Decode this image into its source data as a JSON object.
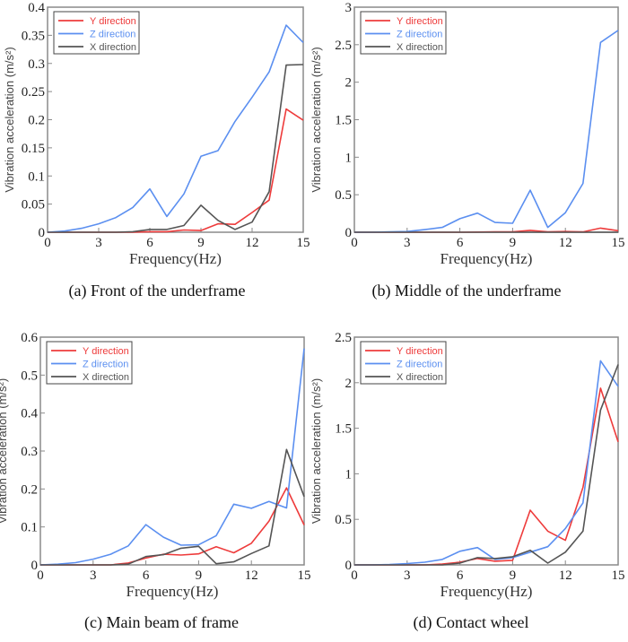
{
  "chart_data": [
    {
      "type": "line",
      "id": "a",
      "caption": "(a) Front of the underframe",
      "xlabel": "Frequency(Hz)",
      "ylabel": "Vibration acceleration (m/s²)",
      "xlim": [
        0,
        15
      ],
      "ylim": [
        0,
        0.4
      ],
      "xticks": [
        0,
        3,
        6,
        9,
        12,
        15
      ],
      "yticks": [
        0,
        0.05,
        0.1,
        0.15,
        0.2,
        0.25,
        0.3,
        0.35,
        0.4
      ],
      "ytick_labels": [
        "0",
        "0.05",
        "0.1",
        "0.15",
        "0.2",
        "0.25",
        "0.3",
        "0.35",
        "0.4"
      ],
      "grid": false,
      "legend_position": "top-left",
      "x": [
        0,
        1,
        2,
        3,
        4,
        5,
        6,
        7,
        8,
        9,
        10,
        11,
        12,
        13,
        14,
        15
      ],
      "series": [
        {
          "name": "Y direction",
          "color": "#ee3b3b",
          "values": [
            0,
            0,
            0,
            0,
            0,
            0,
            0.001,
            0.001,
            0.004,
            0.003,
            0.015,
            0.014,
            0.035,
            0.057,
            0.219,
            0.199
          ]
        },
        {
          "name": "Z direction",
          "color": "#5b8ff0",
          "values": [
            0,
            0.002,
            0.007,
            0.015,
            0.026,
            0.044,
            0.077,
            0.028,
            0.068,
            0.135,
            0.145,
            0.197,
            0.24,
            0.285,
            0.368,
            0.337
          ]
        },
        {
          "name": "X direction",
          "color": "#555555",
          "values": [
            0,
            0,
            0,
            0,
            0,
            0.001,
            0.005,
            0.005,
            0.012,
            0.048,
            0.021,
            0.005,
            0.018,
            0.072,
            0.297,
            0.298
          ]
        }
      ]
    },
    {
      "type": "line",
      "id": "b",
      "caption": "(b) Middle of the underframe",
      "xlabel": "Frequency(Hz)",
      "ylabel": "Vibration acceleration (m/s²)",
      "xlim": [
        0,
        15
      ],
      "ylim": [
        0,
        3
      ],
      "xticks": [
        0,
        3,
        6,
        9,
        12,
        15
      ],
      "yticks": [
        0,
        0.5,
        1,
        1.5,
        2,
        2.5,
        3
      ],
      "ytick_labels": [
        "0",
        "0.5",
        "1",
        "1.5",
        "2",
        "2.5",
        "3"
      ],
      "grid": false,
      "legend_position": "top-left",
      "x": [
        0,
        1,
        2,
        3,
        4,
        5,
        6,
        7,
        8,
        9,
        10,
        11,
        12,
        13,
        14,
        15
      ],
      "series": [
        {
          "name": "Y direction",
          "color": "#ee3b3b",
          "values": [
            0,
            0,
            0,
            0,
            0,
            0,
            0,
            0.002,
            0.005,
            0.005,
            0.025,
            0.005,
            0.01,
            0.005,
            0.055,
            0.02
          ]
        },
        {
          "name": "Z direction",
          "color": "#5b8ff0",
          "values": [
            0,
            0,
            0.005,
            0.01,
            0.035,
            0.065,
            0.18,
            0.255,
            0.13,
            0.12,
            0.56,
            0.065,
            0.26,
            0.65,
            2.53,
            2.69
          ]
        },
        {
          "name": "X direction",
          "color": "#555555",
          "values": [
            0,
            0,
            0,
            0,
            0,
            0,
            0,
            0,
            0,
            0,
            0,
            0,
            0,
            0,
            0,
            0
          ]
        }
      ]
    },
    {
      "type": "line",
      "id": "c",
      "caption": "(c) Main beam of frame",
      "xlabel": "Frequency(Hz)",
      "ylabel": "Vibration acceleration (m/s²)",
      "xlim": [
        0,
        15
      ],
      "ylim": [
        0,
        0.6
      ],
      "xticks": [
        0,
        3,
        6,
        9,
        12,
        15
      ],
      "yticks": [
        0,
        0.1,
        0.2,
        0.3,
        0.4,
        0.5,
        0.6
      ],
      "ytick_labels": [
        "0",
        "0.1",
        "0.2",
        "0.3",
        "0.4",
        "0.5",
        "0.6"
      ],
      "grid": false,
      "legend_position": "top-left",
      "x": [
        0,
        1,
        2,
        3,
        4,
        5,
        6,
        7,
        8,
        9,
        10,
        11,
        12,
        13,
        14,
        15
      ],
      "series": [
        {
          "name": "Y direction",
          "color": "#ee3b3b",
          "values": [
            0,
            0,
            0,
            0,
            0,
            0.005,
            0.018,
            0.028,
            0.026,
            0.029,
            0.048,
            0.032,
            0.057,
            0.115,
            0.203,
            0.105
          ]
        },
        {
          "name": "Z direction",
          "color": "#5b8ff0",
          "values": [
            0,
            0.002,
            0.006,
            0.015,
            0.028,
            0.05,
            0.106,
            0.073,
            0.052,
            0.053,
            0.077,
            0.16,
            0.149,
            0.167,
            0.15,
            0.57
          ]
        },
        {
          "name": "X direction",
          "color": "#555555",
          "values": [
            0,
            0,
            0,
            0,
            0,
            0.002,
            0.022,
            0.027,
            0.044,
            0.049,
            0.003,
            0.008,
            0.03,
            0.05,
            0.304,
            0.18
          ]
        }
      ]
    },
    {
      "type": "line",
      "id": "d",
      "caption": "(d) Contact wheel",
      "xlabel": "Frequency(Hz)",
      "ylabel": "Vibration acceleration (m/s²)",
      "xlim": [
        0,
        15
      ],
      "ylim": [
        0,
        2.5
      ],
      "xticks": [
        0,
        3,
        6,
        9,
        12,
        15
      ],
      "yticks": [
        0,
        0.5,
        1,
        1.5,
        2,
        2.5
      ],
      "ytick_labels": [
        "0",
        "0.5",
        "1",
        "1.5",
        "2",
        "2.5"
      ],
      "grid": false,
      "legend_position": "top-left",
      "x": [
        0,
        1,
        2,
        3,
        4,
        5,
        6,
        7,
        8,
        9,
        10,
        11,
        12,
        13,
        14,
        15
      ],
      "series": [
        {
          "name": "Y direction",
          "color": "#ee3b3b",
          "values": [
            0,
            0,
            0,
            0,
            0,
            0.01,
            0.03,
            0.07,
            0.04,
            0.05,
            0.6,
            0.37,
            0.27,
            0.85,
            1.94,
            1.35
          ]
        },
        {
          "name": "Z direction",
          "color": "#5b8ff0",
          "values": [
            0,
            0,
            0.005,
            0.015,
            0.03,
            0.06,
            0.15,
            0.19,
            0.06,
            0.08,
            0.14,
            0.2,
            0.4,
            0.68,
            2.24,
            1.96
          ]
        },
        {
          "name": "X direction",
          "color": "#555555",
          "values": [
            0,
            0,
            0,
            0,
            0,
            0,
            0.02,
            0.08,
            0.07,
            0.09,
            0.16,
            0.02,
            0.14,
            0.37,
            1.7,
            2.2
          ]
        }
      ]
    }
  ]
}
